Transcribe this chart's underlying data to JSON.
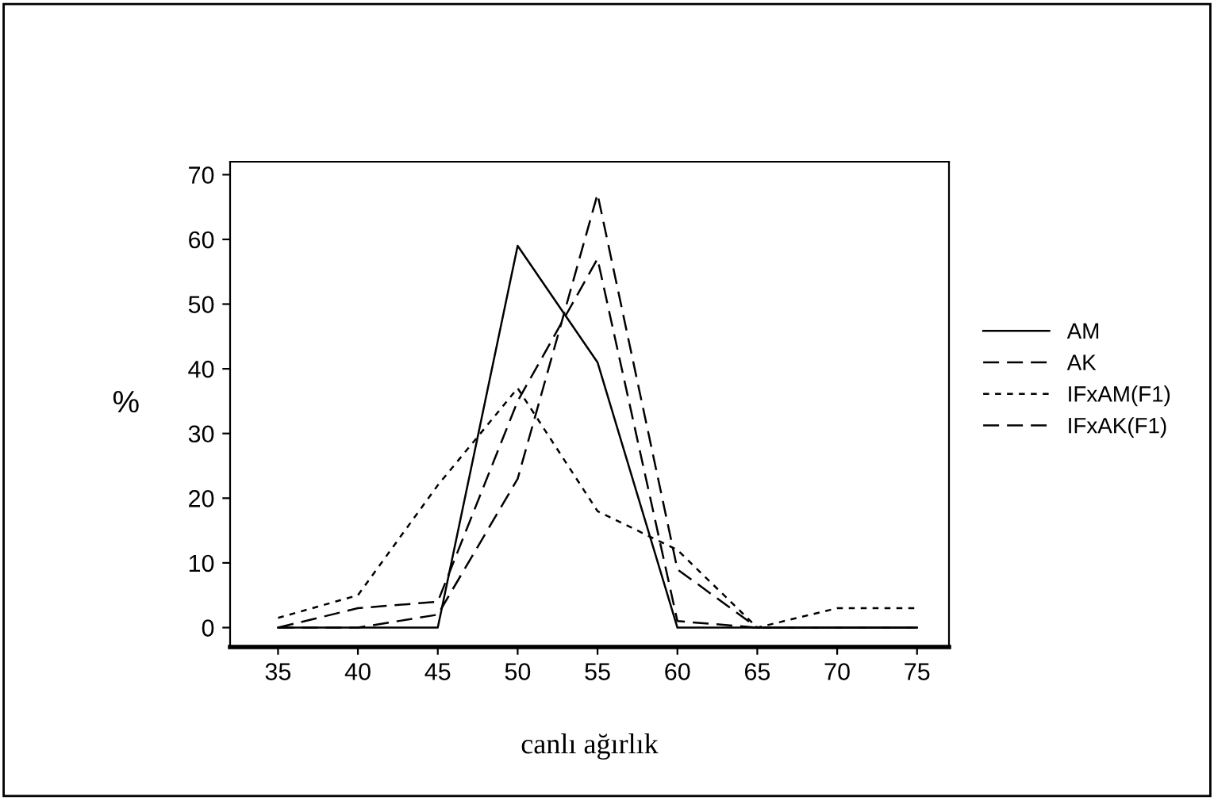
{
  "chart_data": {
    "type": "line",
    "xlabel": "canlı ağırlık",
    "ylabel": "%",
    "x": [
      35,
      40,
      45,
      50,
      55,
      60,
      65,
      70,
      75
    ],
    "series": [
      {
        "name": "AM",
        "color": "#000000",
        "line_style": "solid",
        "values": [
          0,
          0,
          0,
          59,
          41,
          0,
          0,
          0,
          0
        ]
      },
      {
        "name": "AK",
        "color": "#000000",
        "line_style": "dashed",
        "values": [
          0,
          0,
          2,
          23,
          67,
          9,
          0,
          0,
          0
        ]
      },
      {
        "name": "IFxAM(F1)",
        "color": "#000000",
        "line_style": "dotted",
        "values": [
          1.5,
          5,
          22,
          37,
          18,
          12,
          0,
          3,
          3
        ]
      },
      {
        "name": "IFxAK(F1)",
        "color": "#000000",
        "line_style": "dashed",
        "values": [
          0,
          3,
          4,
          35,
          57,
          1,
          0,
          0,
          0
        ]
      }
    ],
    "xlim": [
      32,
      77
    ],
    "ylim": [
      -3,
      72
    ],
    "xticks": [
      35,
      40,
      45,
      50,
      55,
      60,
      65,
      70,
      75
    ],
    "yticks": [
      0,
      10,
      20,
      30,
      40,
      50,
      60,
      70
    ],
    "grid": false,
    "legend": "right",
    "marker": "none"
  }
}
